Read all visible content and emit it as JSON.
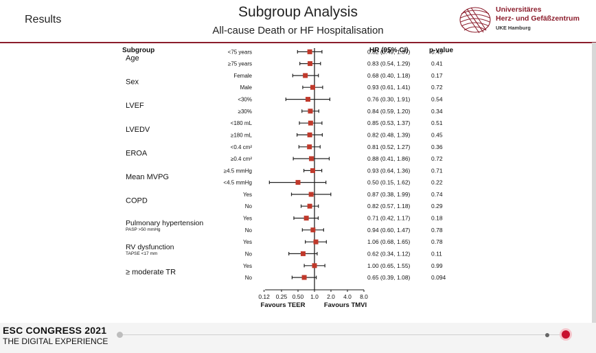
{
  "header": {
    "section": "Results",
    "title": "Subgroup Analysis",
    "subtitle": "All-cause Death or HF Hospitalisation",
    "logo_line1": "Universitäres",
    "logo_line2": "Herz- und Gefäßzentrum",
    "logo_line3": "UKE Hamburg"
  },
  "footer": {
    "congress": "ESC CONGRESS 2021",
    "tagline": "THE DIGITAL EXPERIENCE"
  },
  "colors": {
    "accent": "#8b1c2b",
    "point": "#c0392b",
    "slider": "#c8102e"
  },
  "chart_data": {
    "type": "forest",
    "columns": {
      "subgroup": "Subgroup",
      "hr": "HR (95% CI)",
      "p": "p-value"
    },
    "x_scale": "log",
    "xticks": [
      0.12,
      0.25,
      0.5,
      1.0,
      2.0,
      4.0,
      8.0
    ],
    "xtick_labels": [
      "0.12",
      "0.25",
      "0.50",
      "1.0",
      "2.0",
      "4.0",
      "8.0"
    ],
    "reference": 1.0,
    "favours_left": "Favours TEER",
    "favours_right": "Favours TMVI",
    "groups": [
      {
        "name": "Age",
        "note": "",
        "rows": [
          {
            "level": "<75 years",
            "hr": 0.82,
            "lo": 0.49,
            "hi": 1.37,
            "hr_text": "0.82 (0.49, 1.37)",
            "p": "0.45"
          },
          {
            "level": "≥75 years",
            "hr": 0.83,
            "lo": 0.54,
            "hi": 1.29,
            "hr_text": "0.83 (0.54, 1.29)",
            "p": "0.41"
          }
        ]
      },
      {
        "name": "Sex",
        "note": "",
        "rows": [
          {
            "level": "Female",
            "hr": 0.68,
            "lo": 0.4,
            "hi": 1.18,
            "hr_text": "0.68 (0.40, 1.18)",
            "p": "0.17"
          },
          {
            "level": "Male",
            "hr": 0.93,
            "lo": 0.61,
            "hi": 1.41,
            "hr_text": "0.93 (0.61, 1.41)",
            "p": "0.72"
          }
        ]
      },
      {
        "name": "LVEF",
        "note": "",
        "rows": [
          {
            "level": "<30%",
            "hr": 0.76,
            "lo": 0.3,
            "hi": 1.91,
            "hr_text": "0.76 (0.30, 1.91)",
            "p": "0.54"
          },
          {
            "level": "≥30%",
            "hr": 0.84,
            "lo": 0.59,
            "hi": 1.2,
            "hr_text": "0.84 (0.59, 1.20)",
            "p": "0.34"
          }
        ]
      },
      {
        "name": "LVEDV",
        "note": "",
        "rows": [
          {
            "level": "<180 mL",
            "hr": 0.85,
            "lo": 0.53,
            "hi": 1.37,
            "hr_text": "0.85 (0.53, 1.37)",
            "p": "0.51"
          },
          {
            "level": "≥180 mL",
            "hr": 0.82,
            "lo": 0.48,
            "hi": 1.39,
            "hr_text": "0.82 (0.48, 1.39)",
            "p": "0.45"
          }
        ]
      },
      {
        "name": "EROA",
        "note": "",
        "rows": [
          {
            "level": "<0.4 cm²",
            "hr": 0.81,
            "lo": 0.52,
            "hi": 1.27,
            "hr_text": "0.81 (0.52, 1.27)",
            "p": "0.36"
          },
          {
            "level": "≥0.4 cm²",
            "hr": 0.88,
            "lo": 0.41,
            "hi": 1.86,
            "hr_text": "0.88 (0.41, 1.86)",
            "p": "0.72"
          }
        ]
      },
      {
        "name": "Mean MVPG",
        "note": "",
        "rows": [
          {
            "level": "≥4.5 mmHg",
            "hr": 0.93,
            "lo": 0.64,
            "hi": 1.36,
            "hr_text": "0.93 (0.64, 1.36)",
            "p": "0.71"
          },
          {
            "level": "<4.5 mmHg",
            "hr": 0.5,
            "lo": 0.15,
            "hi": 1.62,
            "hr_text": "0.50 (0.15, 1.62)",
            "p": "0.22"
          }
        ]
      },
      {
        "name": "COPD",
        "note": "",
        "rows": [
          {
            "level": "Yes",
            "hr": 0.87,
            "lo": 0.38,
            "hi": 1.99,
            "hr_text": "0.87 (0.38, 1.99)",
            "p": "0.74"
          },
          {
            "level": "No",
            "hr": 0.82,
            "lo": 0.57,
            "hi": 1.18,
            "hr_text": "0.82 (0.57, 1.18)",
            "p": "0.29"
          }
        ]
      },
      {
        "name": "Pulmonary hypertension",
        "note": "PASP >50 mmHg",
        "rows": [
          {
            "level": "Yes",
            "hr": 0.71,
            "lo": 0.42,
            "hi": 1.17,
            "hr_text": "0.71 (0.42, 1.17)",
            "p": "0.18"
          },
          {
            "level": "No",
            "hr": 0.94,
            "lo": 0.6,
            "hi": 1.47,
            "hr_text": "0.94 (0.60, 1.47)",
            "p": "0.78"
          }
        ]
      },
      {
        "name": "RV dysfunction",
        "note": "TAPSE <17 mm",
        "rows": [
          {
            "level": "Yes",
            "hr": 1.06,
            "lo": 0.68,
            "hi": 1.65,
            "hr_text": "1.06 (0.68, 1.65)",
            "p": "0.78"
          },
          {
            "level": "No",
            "hr": 0.62,
            "lo": 0.34,
            "hi": 1.12,
            "hr_text": "0.62 (0.34, 1.12)",
            "p": "0.11"
          }
        ]
      },
      {
        "name": "≥ moderate TR",
        "note": "",
        "rows": [
          {
            "level": "Yes",
            "hr": 1.0,
            "lo": 0.65,
            "hi": 1.55,
            "hr_text": "1.00 (0.65, 1.55)",
            "p": "0.99"
          },
          {
            "level": "No",
            "hr": 0.65,
            "lo": 0.39,
            "hi": 1.08,
            "hr_text": "0.65 (0.39, 1.08)",
            "p": "0.094"
          }
        ]
      }
    ]
  }
}
